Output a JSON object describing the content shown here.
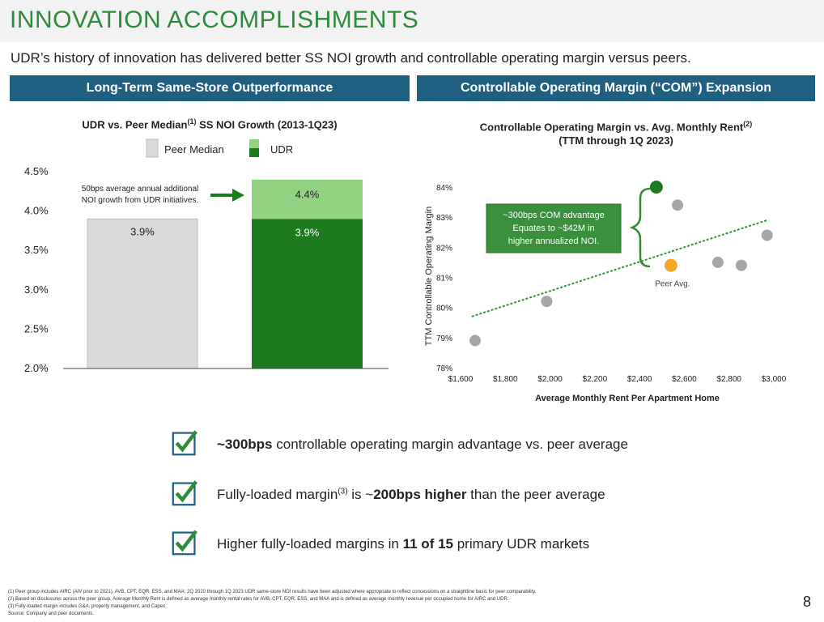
{
  "header": {
    "title": "INNOVATION ACCOMPLISHMENTS",
    "subtitle": "UDR’s history of innovation has delivered better SS NOI growth and controllable operating margin versus peers."
  },
  "sections": {
    "left": "Long-Term Same-Store Outperformance",
    "right": "Controllable Operating Margin (“COM”) Expansion"
  },
  "chart_data": [
    {
      "type": "bar",
      "title": "UDR vs. Peer Median",
      "title_sup": "(1)",
      "title_rest": " SS NOI Growth (2013-1Q23)",
      "legend": [
        "Peer Median",
        "UDR"
      ],
      "y_ticks": [
        "4.5%",
        "4.0%",
        "3.5%",
        "3.0%",
        "2.5%",
        "2.0%"
      ],
      "ylim": [
        2.0,
        4.5
      ],
      "series": [
        {
          "name": "Peer Median",
          "value": 3.9,
          "label": "3.9%",
          "color": "#d9d9d9"
        },
        {
          "name": "UDR",
          "base_value": 3.9,
          "base_label": "3.9%",
          "total_value": 4.4,
          "total_label": "4.4%",
          "base_color": "#1e7a1e",
          "top_color": "#92d283"
        }
      ],
      "annotation_line1": "50bps average annual additional",
      "annotation_line2": "NOI growth from UDR initiatives."
    },
    {
      "type": "scatter",
      "title_line1": "Controllable Operating Margin vs. Avg. Monthly Rent",
      "title_sup": "(2)",
      "title_line2": "(TTM through 1Q 2023)",
      "xlabel": "Average Monthly Rent Per Apartment Home",
      "ylabel": "TTM Controllable Operating Margin",
      "xlim": [
        1600,
        3000
      ],
      "ylim": [
        78,
        84
      ],
      "x_ticks": [
        "$1,600",
        "$1,800",
        "$2,000",
        "$2,200",
        "$2,400",
        "$2,600",
        "$2,800",
        "$3,000"
      ],
      "y_ticks": [
        "84%",
        "83%",
        "82%",
        "81%",
        "80%",
        "79%",
        "78%"
      ],
      "points": [
        {
          "x": 1665,
          "y": 78.9,
          "kind": "peer"
        },
        {
          "x": 1985,
          "y": 80.2,
          "kind": "peer"
        },
        {
          "x": 2475,
          "y": 84.0,
          "kind": "udr"
        },
        {
          "x": 2570,
          "y": 83.4,
          "kind": "peer"
        },
        {
          "x": 2540,
          "y": 81.4,
          "kind": "avg"
        },
        {
          "x": 2750,
          "y": 81.5,
          "kind": "peer"
        },
        {
          "x": 2855,
          "y": 81.4,
          "kind": "peer"
        },
        {
          "x": 2970,
          "y": 82.4,
          "kind": "peer"
        }
      ],
      "trendline": {
        "x0": 1650,
        "y0": 79.7,
        "x1": 2970,
        "y1": 82.9
      },
      "peer_avg_label": "Peer Avg.",
      "callout_line1": "~300bps COM advantage",
      "callout_line2": "Equates to ~$42M in",
      "callout_line3": "higher annualized NOI."
    }
  ],
  "highlights": {
    "item1": {
      "bold": "~300bps",
      "rest": " controllable operating margin advantage vs. peer average"
    },
    "item2": {
      "pre": "Fully-loaded margin",
      "sup": "(3)",
      "mid": " is ~",
      "bold": "200bps higher",
      "rest": " than the peer average"
    },
    "item3": {
      "pre": "Higher fully-loaded margins in ",
      "bold": "11 of 15",
      "rest": " primary UDR markets"
    }
  },
  "footnotes": {
    "f1": "(1)    Peer group includes AIRC (AIV prior to 2021), AVB, CPT, EQR, ESS, and MAA; 2Q 2020 through 1Q 2023 UDR same-store NOI results have been adjusted where appropriate to reflect concessions on a straightline basis for peer comparability.",
    "f2": "(2)    Based on disclosures across the peer group, Average Monthly Rent is defined as average monthly rental rates for AVB, CPT, EQR, ESS, and MAA and is defined as average monthly revenue per occupied home for AIRC and UDR.",
    "f3": "(3)    Fully-loaded margin includes G&A, property management, and Capex",
    "source": "Source:  Company and peer documents."
  },
  "page_number": "8",
  "colors": {
    "title_green": "#2e8b3c",
    "header_blue": "#1e5f82",
    "udr_dark": "#1e7a1e",
    "udr_light": "#92d283",
    "peer_gray": "#d9d9d9",
    "avg_orange": "#f5a623"
  }
}
